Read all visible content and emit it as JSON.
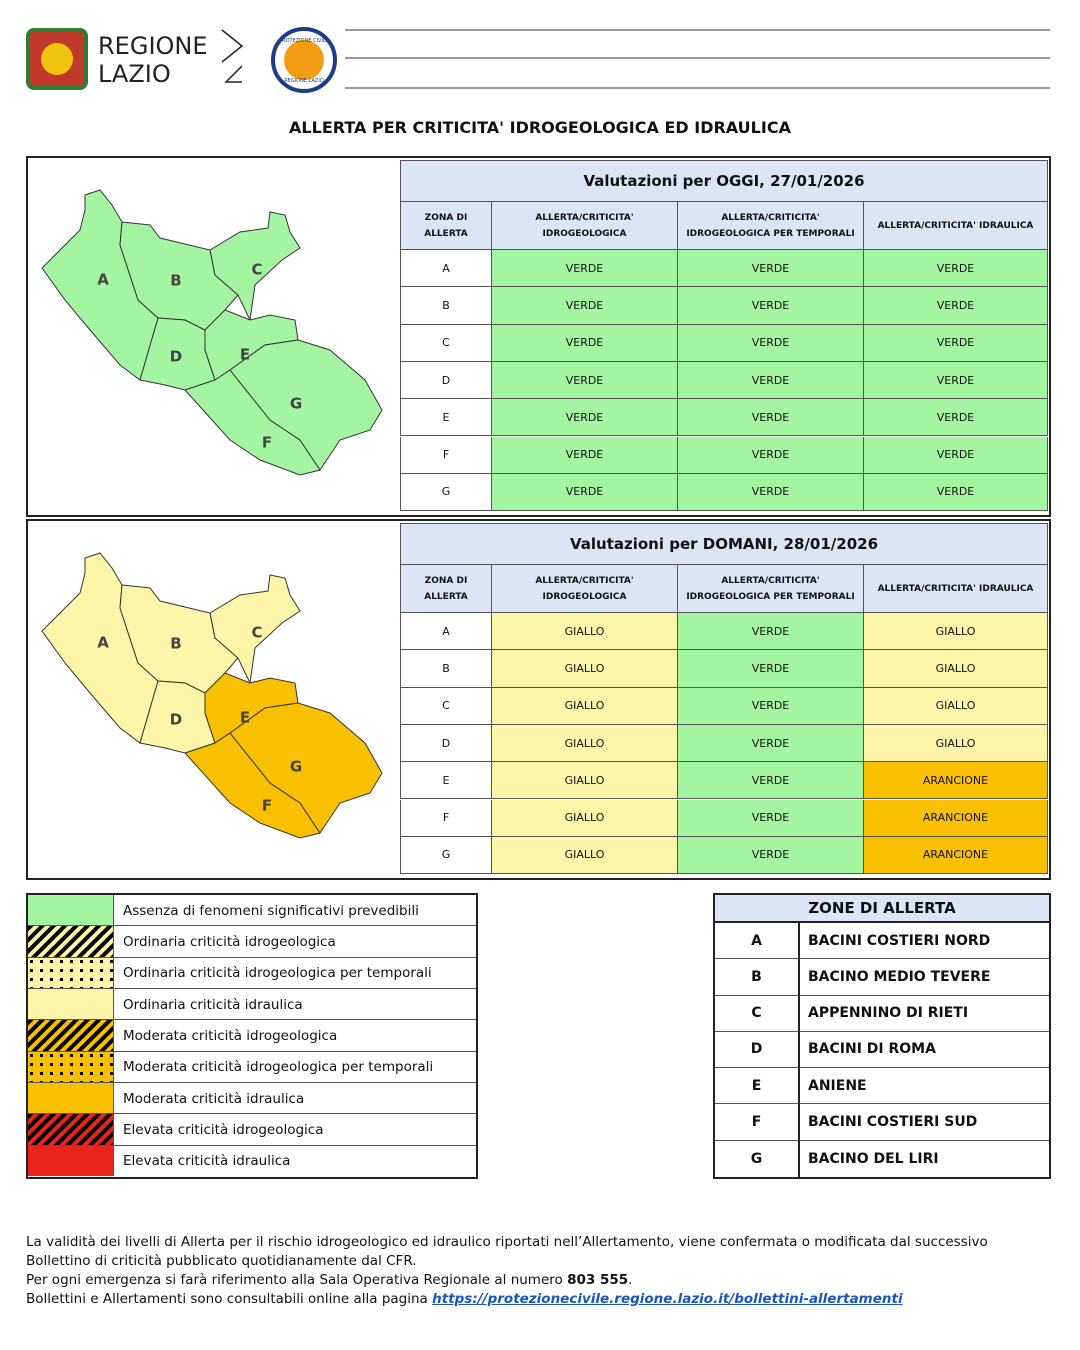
{
  "header": {
    "brand_line1": "REGIONE",
    "brand_line2": "LAZIO",
    "badge_top": "PROTEZIONE CIVILE",
    "badge_bottom": "REGIONE LAZIO"
  },
  "title": "ALLERTA PER CRITICITA' IDROGEOLOGICA ED IDRAULICA",
  "panels": [
    {
      "heading": "Valutazioni per OGGI, 27/01/2026",
      "columns": [
        "ZONA DI ALLERTA",
        "ALLERTA/CRITICITA' IDROGEOLOGICA",
        "ALLERTA/CRITICITA' IDROGEOLOGICA PER TEMPORALI",
        "ALLERTA/CRITICITA' IDRAULICA"
      ],
      "rows": [
        {
          "zone": "A",
          "cells": [
            "VERDE",
            "VERDE",
            "VERDE"
          ],
          "colors": [
            "#a4f5a2",
            "#a4f5a2",
            "#a4f5a2"
          ]
        },
        {
          "zone": "B",
          "cells": [
            "VERDE",
            "VERDE",
            "VERDE"
          ],
          "colors": [
            "#a4f5a2",
            "#a4f5a2",
            "#a4f5a2"
          ]
        },
        {
          "zone": "C",
          "cells": [
            "VERDE",
            "VERDE",
            "VERDE"
          ],
          "colors": [
            "#a4f5a2",
            "#a4f5a2",
            "#a4f5a2"
          ]
        },
        {
          "zone": "D",
          "cells": [
            "VERDE",
            "VERDE",
            "VERDE"
          ],
          "colors": [
            "#a4f5a2",
            "#a4f5a2",
            "#a4f5a2"
          ]
        },
        {
          "zone": "E",
          "cells": [
            "VERDE",
            "VERDE",
            "VERDE"
          ],
          "colors": [
            "#a4f5a2",
            "#a4f5a2",
            "#a4f5a2"
          ]
        },
        {
          "zone": "F",
          "cells": [
            "VERDE",
            "VERDE",
            "VERDE"
          ],
          "colors": [
            "#a4f5a2",
            "#a4f5a2",
            "#a4f5a2"
          ]
        },
        {
          "zone": "G",
          "cells": [
            "VERDE",
            "VERDE",
            "VERDE"
          ],
          "colors": [
            "#a4f5a2",
            "#a4f5a2",
            "#a4f5a2"
          ]
        }
      ],
      "map": [
        {
          "label": "A",
          "color": "#a4f5a2"
        },
        {
          "label": "B",
          "color": "#a4f5a2"
        },
        {
          "label": "C",
          "color": "#a4f5a2"
        },
        {
          "label": "D",
          "color": "#a4f5a2"
        },
        {
          "label": "E",
          "color": "#a4f5a2"
        },
        {
          "label": "F",
          "color": "#a4f5a2"
        },
        {
          "label": "G",
          "color": "#a4f5a2"
        }
      ]
    },
    {
      "heading": "Valutazioni per DOMANI, 28/01/2026",
      "columns": [
        "ZONA DI ALLERTA",
        "ALLERTA/CRITICITA' IDROGEOLOGICA",
        "ALLERTA/CRITICITA' IDROGEOLOGICA PER TEMPORALI",
        "ALLERTA/CRITICITA' IDRAULICA"
      ],
      "rows": [
        {
          "zone": "A",
          "cells": [
            "GIALLO",
            "VERDE",
            "GIALLO"
          ],
          "colors": [
            "#fdf6a9",
            "#a4f5a2",
            "#fdf6a9"
          ]
        },
        {
          "zone": "B",
          "cells": [
            "GIALLO",
            "VERDE",
            "GIALLO"
          ],
          "colors": [
            "#fdf6a9",
            "#a4f5a2",
            "#fdf6a9"
          ]
        },
        {
          "zone": "C",
          "cells": [
            "GIALLO",
            "VERDE",
            "GIALLO"
          ],
          "colors": [
            "#fdf6a9",
            "#a4f5a2",
            "#fdf6a9"
          ]
        },
        {
          "zone": "D",
          "cells": [
            "GIALLO",
            "VERDE",
            "GIALLO"
          ],
          "colors": [
            "#fdf6a9",
            "#a4f5a2",
            "#fdf6a9"
          ]
        },
        {
          "zone": "E",
          "cells": [
            "GIALLO",
            "VERDE",
            "ARANCIONE"
          ],
          "colors": [
            "#fdf6a9",
            "#a4f5a2",
            "#f9c000"
          ]
        },
        {
          "zone": "F",
          "cells": [
            "GIALLO",
            "VERDE",
            "ARANCIONE"
          ],
          "colors": [
            "#fdf6a9",
            "#a4f5a2",
            "#f9c000"
          ]
        },
        {
          "zone": "G",
          "cells": [
            "GIALLO",
            "VERDE",
            "ARANCIONE"
          ],
          "colors": [
            "#fdf6a9",
            "#a4f5a2",
            "#f9c000"
          ]
        }
      ],
      "map": [
        {
          "label": "A",
          "color": "#fdf6a9"
        },
        {
          "label": "B",
          "color": "#fdf6a9"
        },
        {
          "label": "C",
          "color": "#fdf6a9"
        },
        {
          "label": "D",
          "color": "#fdf6a9"
        },
        {
          "label": "E",
          "color": "#f9c000"
        },
        {
          "label": "F",
          "color": "#f9c000"
        },
        {
          "label": "G",
          "color": "#f9c000"
        }
      ]
    }
  ],
  "legend": [
    {
      "label": "Assenza di fenomeni significativi prevedibili",
      "color": "#a4f5a2",
      "pattern": "none"
    },
    {
      "label": "Ordinaria criticità idrogeologica",
      "color": "#fdf6a9",
      "pattern": "stripes"
    },
    {
      "label": "Ordinaria criticità idrogeologica per temporali",
      "color": "#fdf6a9",
      "pattern": "dots"
    },
    {
      "label": "Ordinaria criticità idraulica",
      "color": "#fdf6a9",
      "pattern": "none"
    },
    {
      "label": "Moderata criticità idrogeologica",
      "color": "#f9c000",
      "pattern": "stripes"
    },
    {
      "label": "Moderata criticità idrogeologica per temporali",
      "color": "#f9c000",
      "pattern": "dots"
    },
    {
      "label": "Moderata criticità idraulica",
      "color": "#f9c000",
      "pattern": "none"
    },
    {
      "label": "Elevata criticità idrogeologica",
      "color": "#e8241b",
      "pattern": "stripes"
    },
    {
      "label": "Elevata criticità idraulica",
      "color": "#e8241b",
      "pattern": "none"
    }
  ],
  "zones": {
    "title": "ZONE DI ALLERTA",
    "rows": [
      [
        "A",
        "BACINI COSTIERI NORD"
      ],
      [
        "B",
        "BACINO MEDIO TEVERE"
      ],
      [
        "C",
        "APPENNINO DI RIETI"
      ],
      [
        "D",
        "BACINI DI ROMA"
      ],
      [
        "E",
        "ANIENE"
      ],
      [
        "F",
        "BACINI COSTIERI SUD"
      ],
      [
        "G",
        "BACINO DEL LIRI"
      ]
    ]
  },
  "footer": {
    "line1": "La validità dei livelli di Allerta per il rischio idrogeologico ed idraulico riportati nell’Allertamento, viene confermata o modificata dal successivo",
    "line2": "Bollettino di criticità pubblicato quotidianamente dal CFR.",
    "line3": {
      "before": "Per ogni emergenza si farà riferimento alla Sala Operativa Regionale al numero ",
      "bold": "803 555",
      "after": "."
    },
    "line4": {
      "before": "Bollettini e Allertamenti sono consultabili online alla pagina ",
      "link": "https://protezionecivile.regione.lazio.it/bollettini-allertamenti"
    }
  }
}
